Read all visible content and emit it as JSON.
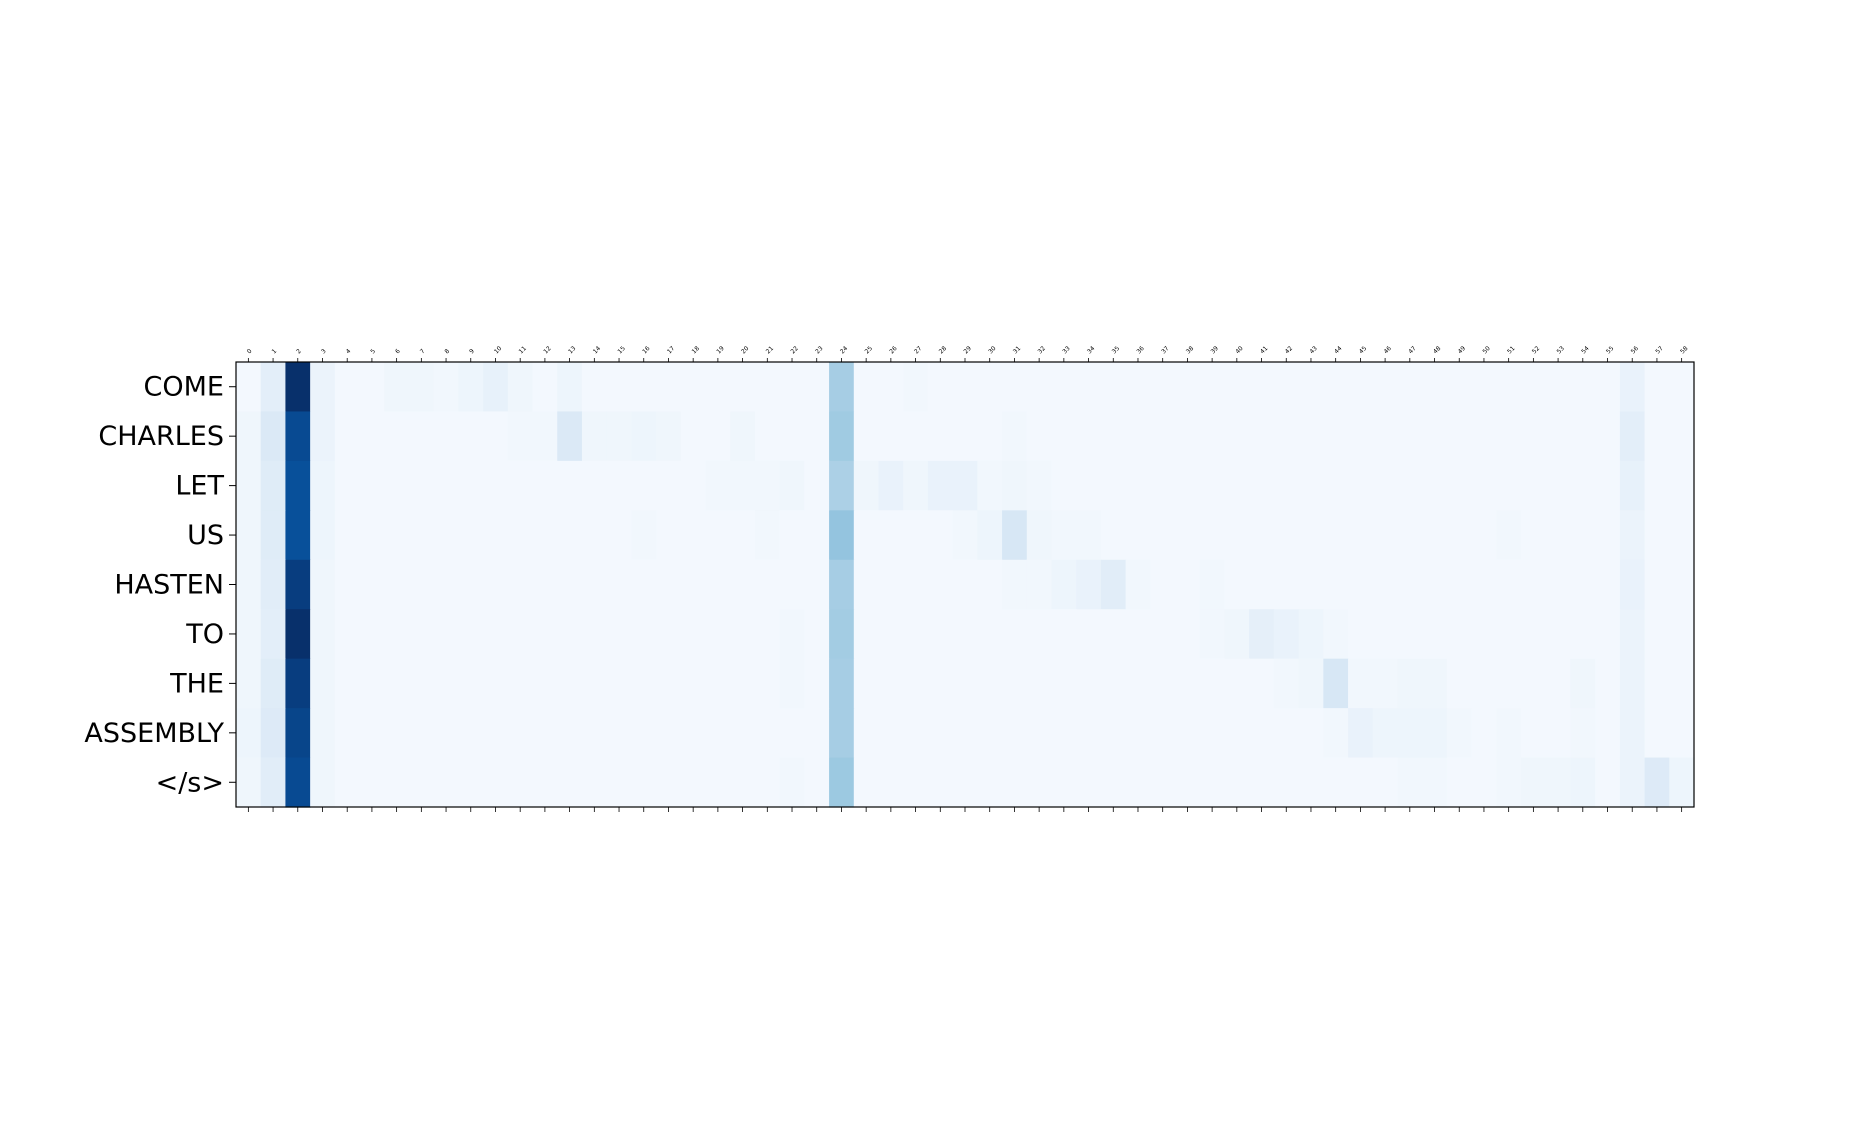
{
  "chart_data": {
    "type": "heatmap",
    "title": "",
    "xlabel": "",
    "ylabel": "",
    "colormap": "Blues",
    "value_range": [
      0,
      1
    ],
    "grid": false,
    "legend": "none",
    "x_ticks": [
      "0",
      "1",
      "2",
      "3",
      "4",
      "5",
      "6",
      "7",
      "8",
      "9",
      "10",
      "11",
      "12",
      "13",
      "14",
      "15",
      "16",
      "17",
      "18",
      "19",
      "20",
      "21",
      "22",
      "23",
      "24",
      "25",
      "26",
      "27",
      "28",
      "29",
      "30",
      "31",
      "32",
      "33",
      "34",
      "35",
      "36",
      "37",
      "38",
      "39",
      "40",
      "41",
      "42",
      "43",
      "44",
      "45",
      "46",
      "47",
      "48",
      "49",
      "50",
      "51",
      "52",
      "53",
      "54",
      "55",
      "56",
      "57",
      "58"
    ],
    "y_labels": [
      "COME",
      "CHARLES",
      "LET",
      "US",
      "HASTEN",
      "TO",
      "THE",
      "ASSEMBLY",
      "</s>"
    ],
    "values": [
      [
        0.02,
        0.1,
        1.0,
        0.06,
        0.02,
        0.02,
        0.04,
        0.04,
        0.03,
        0.05,
        0.08,
        0.04,
        0.02,
        0.05,
        0.02,
        0.02,
        0.02,
        0.02,
        0.02,
        0.02,
        0.02,
        0.02,
        0.02,
        0.02,
        0.35,
        0.02,
        0.02,
        0.03,
        0.02,
        0.02,
        0.02,
        0.02,
        0.02,
        0.02,
        0.02,
        0.02,
        0.02,
        0.02,
        0.02,
        0.02,
        0.02,
        0.02,
        0.02,
        0.02,
        0.02,
        0.02,
        0.02,
        0.02,
        0.02,
        0.02,
        0.02,
        0.02,
        0.02,
        0.02,
        0.02,
        0.02,
        0.07,
        0.02,
        0.02
      ],
      [
        0.04,
        0.14,
        0.9,
        0.06,
        0.02,
        0.02,
        0.02,
        0.02,
        0.02,
        0.02,
        0.02,
        0.03,
        0.03,
        0.14,
        0.04,
        0.04,
        0.05,
        0.04,
        0.02,
        0.02,
        0.04,
        0.02,
        0.02,
        0.02,
        0.37,
        0.02,
        0.02,
        0.02,
        0.02,
        0.02,
        0.02,
        0.03,
        0.02,
        0.02,
        0.02,
        0.02,
        0.02,
        0.02,
        0.02,
        0.02,
        0.02,
        0.02,
        0.02,
        0.02,
        0.02,
        0.02,
        0.02,
        0.02,
        0.02,
        0.02,
        0.02,
        0.02,
        0.02,
        0.02,
        0.02,
        0.02,
        0.1,
        0.02,
        0.02
      ],
      [
        0.04,
        0.12,
        0.88,
        0.05,
        0.02,
        0.02,
        0.02,
        0.02,
        0.02,
        0.02,
        0.02,
        0.02,
        0.02,
        0.02,
        0.02,
        0.02,
        0.02,
        0.02,
        0.02,
        0.03,
        0.03,
        0.03,
        0.04,
        0.02,
        0.33,
        0.04,
        0.07,
        0.04,
        0.07,
        0.07,
        0.03,
        0.04,
        0.03,
        0.02,
        0.02,
        0.02,
        0.02,
        0.02,
        0.02,
        0.02,
        0.02,
        0.02,
        0.02,
        0.02,
        0.02,
        0.02,
        0.02,
        0.02,
        0.02,
        0.02,
        0.02,
        0.02,
        0.02,
        0.02,
        0.02,
        0.02,
        0.08,
        0.02,
        0.02
      ],
      [
        0.04,
        0.12,
        0.88,
        0.05,
        0.02,
        0.02,
        0.02,
        0.02,
        0.02,
        0.02,
        0.02,
        0.02,
        0.02,
        0.02,
        0.02,
        0.02,
        0.03,
        0.02,
        0.02,
        0.02,
        0.02,
        0.03,
        0.02,
        0.02,
        0.4,
        0.02,
        0.02,
        0.02,
        0.02,
        0.03,
        0.05,
        0.16,
        0.04,
        0.03,
        0.03,
        0.02,
        0.02,
        0.02,
        0.02,
        0.02,
        0.02,
        0.02,
        0.02,
        0.02,
        0.02,
        0.02,
        0.02,
        0.02,
        0.02,
        0.02,
        0.02,
        0.03,
        0.02,
        0.02,
        0.02,
        0.02,
        0.06,
        0.02,
        0.02
      ],
      [
        0.04,
        0.11,
        0.95,
        0.04,
        0.02,
        0.02,
        0.02,
        0.02,
        0.02,
        0.02,
        0.02,
        0.02,
        0.02,
        0.02,
        0.02,
        0.02,
        0.02,
        0.02,
        0.02,
        0.02,
        0.02,
        0.02,
        0.02,
        0.02,
        0.35,
        0.02,
        0.02,
        0.02,
        0.02,
        0.02,
        0.02,
        0.03,
        0.03,
        0.05,
        0.07,
        0.11,
        0.03,
        0.02,
        0.02,
        0.03,
        0.02,
        0.02,
        0.02,
        0.02,
        0.02,
        0.02,
        0.02,
        0.02,
        0.02,
        0.02,
        0.02,
        0.02,
        0.02,
        0.02,
        0.02,
        0.02,
        0.07,
        0.02,
        0.02
      ],
      [
        0.04,
        0.1,
        1.0,
        0.04,
        0.02,
        0.02,
        0.02,
        0.02,
        0.02,
        0.02,
        0.02,
        0.02,
        0.02,
        0.02,
        0.02,
        0.02,
        0.02,
        0.02,
        0.02,
        0.02,
        0.02,
        0.02,
        0.03,
        0.02,
        0.36,
        0.02,
        0.02,
        0.02,
        0.02,
        0.02,
        0.02,
        0.02,
        0.02,
        0.02,
        0.02,
        0.02,
        0.02,
        0.02,
        0.02,
        0.03,
        0.04,
        0.09,
        0.07,
        0.05,
        0.03,
        0.02,
        0.02,
        0.02,
        0.02,
        0.02,
        0.02,
        0.02,
        0.02,
        0.02,
        0.02,
        0.02,
        0.06,
        0.02,
        0.02
      ],
      [
        0.04,
        0.12,
        0.95,
        0.04,
        0.02,
        0.02,
        0.02,
        0.02,
        0.02,
        0.02,
        0.02,
        0.02,
        0.02,
        0.02,
        0.02,
        0.02,
        0.02,
        0.02,
        0.02,
        0.02,
        0.02,
        0.02,
        0.03,
        0.02,
        0.35,
        0.02,
        0.02,
        0.02,
        0.02,
        0.02,
        0.02,
        0.02,
        0.02,
        0.02,
        0.02,
        0.02,
        0.02,
        0.02,
        0.02,
        0.02,
        0.02,
        0.02,
        0.03,
        0.04,
        0.16,
        0.03,
        0.03,
        0.04,
        0.04,
        0.02,
        0.02,
        0.02,
        0.02,
        0.02,
        0.04,
        0.02,
        0.06,
        0.02,
        0.02
      ],
      [
        0.05,
        0.13,
        0.92,
        0.04,
        0.02,
        0.02,
        0.02,
        0.02,
        0.02,
        0.02,
        0.02,
        0.02,
        0.02,
        0.02,
        0.02,
        0.02,
        0.02,
        0.02,
        0.02,
        0.02,
        0.02,
        0.02,
        0.02,
        0.02,
        0.35,
        0.02,
        0.02,
        0.02,
        0.02,
        0.02,
        0.02,
        0.02,
        0.02,
        0.02,
        0.02,
        0.02,
        0.02,
        0.02,
        0.02,
        0.02,
        0.02,
        0.02,
        0.02,
        0.02,
        0.03,
        0.07,
        0.05,
        0.05,
        0.05,
        0.03,
        0.02,
        0.03,
        0.02,
        0.02,
        0.03,
        0.02,
        0.06,
        0.02,
        0.02
      ],
      [
        0.04,
        0.11,
        0.9,
        0.04,
        0.02,
        0.02,
        0.02,
        0.02,
        0.02,
        0.02,
        0.02,
        0.02,
        0.02,
        0.02,
        0.02,
        0.02,
        0.02,
        0.02,
        0.02,
        0.02,
        0.02,
        0.02,
        0.03,
        0.02,
        0.38,
        0.02,
        0.02,
        0.02,
        0.02,
        0.02,
        0.02,
        0.02,
        0.02,
        0.02,
        0.02,
        0.02,
        0.02,
        0.02,
        0.02,
        0.02,
        0.02,
        0.02,
        0.02,
        0.02,
        0.02,
        0.02,
        0.02,
        0.03,
        0.03,
        0.02,
        0.02,
        0.03,
        0.04,
        0.04,
        0.05,
        0.02,
        0.06,
        0.13,
        0.05
      ]
    ]
  }
}
